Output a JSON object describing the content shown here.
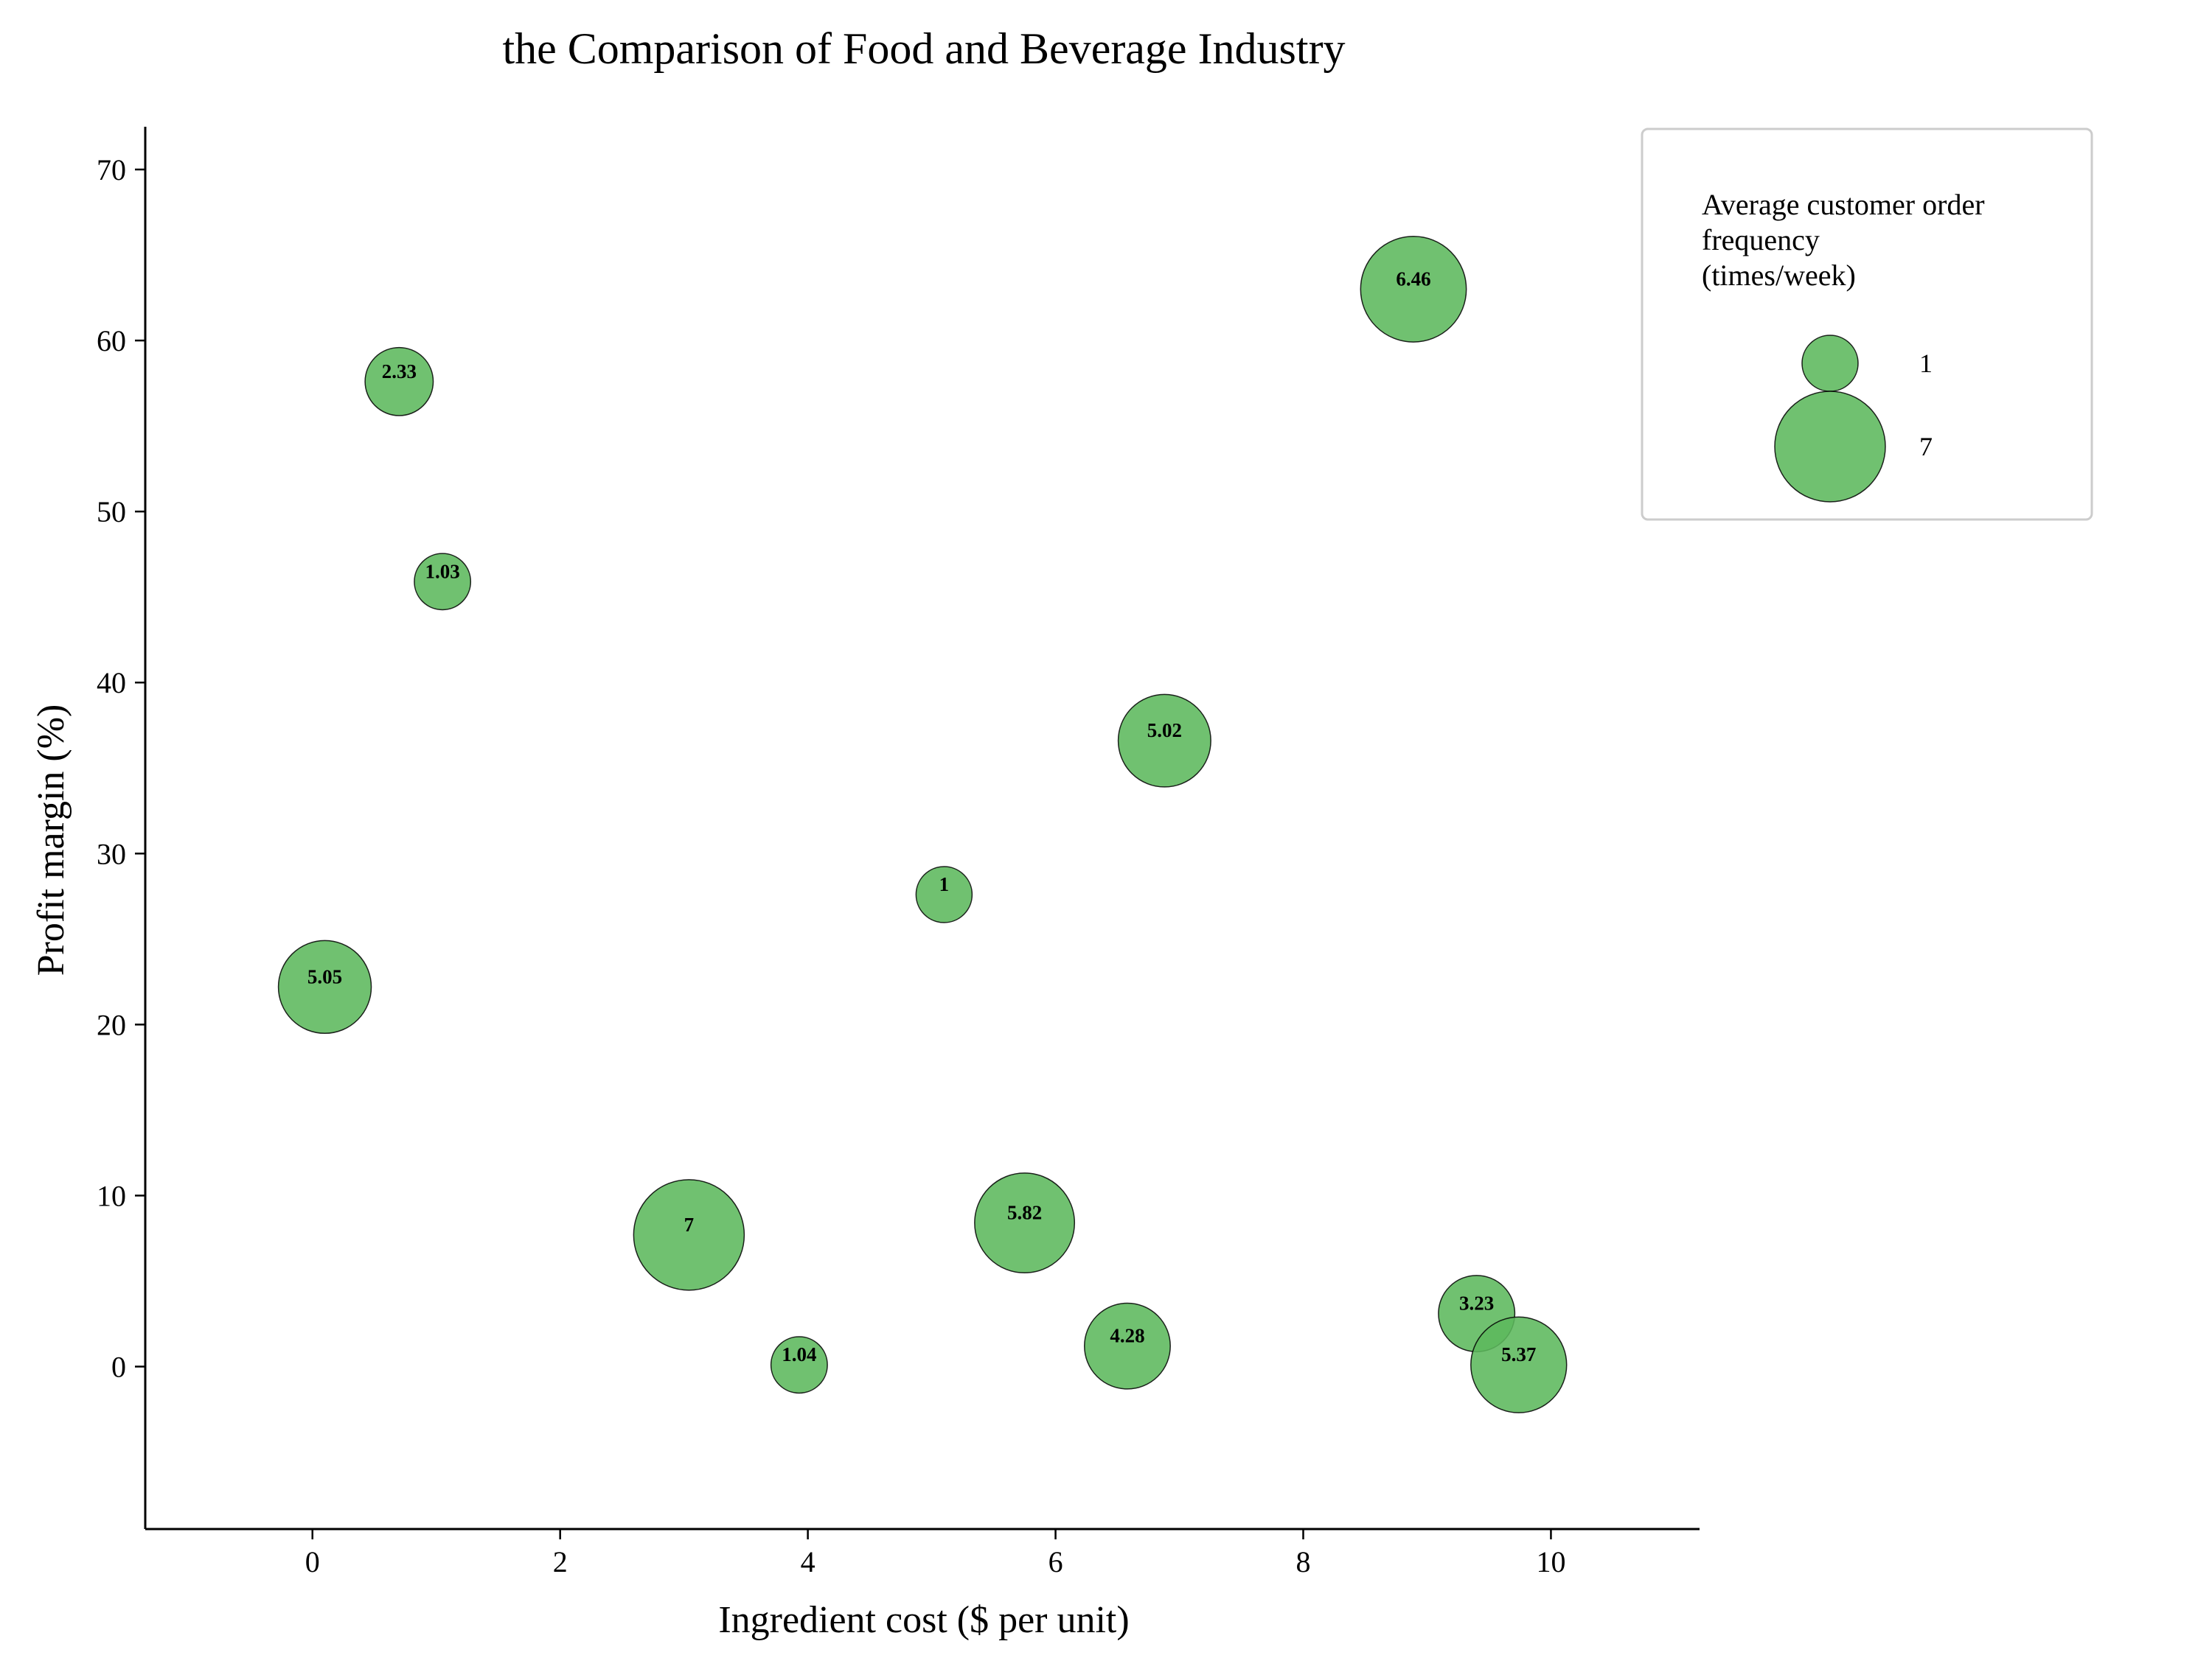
{
  "chart_data": {
    "type": "scatter",
    "subtype": "bubble",
    "title": "the Comparison of Food and Beverage Industry",
    "xlabel": "Ingredient cost ($ per unit)",
    "ylabel": "Profit margin (%)",
    "xlim": [
      -1.35,
      11.2
    ],
    "ylim": [
      -9.5,
      72.5
    ],
    "xticks": [
      0,
      2,
      4,
      6,
      8,
      10
    ],
    "yticks": [
      0,
      10,
      20,
      30,
      40,
      50,
      60,
      70
    ],
    "grid": false,
    "size_encoding": "Average customer order frequency (times/week)",
    "color": "#5cb85c",
    "points": [
      {
        "x": 0.7,
        "y": 57.6,
        "size": 2.33,
        "label": "2.33"
      },
      {
        "x": 1.05,
        "y": 45.9,
        "size": 1.03,
        "label": "1.03"
      },
      {
        "x": 0.1,
        "y": 22.2,
        "size": 5.05,
        "label": "5.05"
      },
      {
        "x": 3.04,
        "y": 7.7,
        "size": 7,
        "label": "7"
      },
      {
        "x": 3.93,
        "y": 0.1,
        "size": 1.04,
        "label": "1.04"
      },
      {
        "x": 5.1,
        "y": 27.6,
        "size": 1,
        "label": "1"
      },
      {
        "x": 5.75,
        "y": 8.4,
        "size": 5.82,
        "label": "5.82"
      },
      {
        "x": 6.58,
        "y": 1.2,
        "size": 4.28,
        "label": "4.28"
      },
      {
        "x": 6.88,
        "y": 36.6,
        "size": 5.02,
        "label": "5.02"
      },
      {
        "x": 8.89,
        "y": 63.0,
        "size": 6.46,
        "label": "6.46"
      },
      {
        "x": 9.4,
        "y": 3.1,
        "size": 3.23,
        "label": "3.23"
      },
      {
        "x": 9.74,
        "y": 0.1,
        "size": 5.37,
        "label": "5.37"
      }
    ],
    "legend": {
      "position": "top-right",
      "title_lines": [
        "Average customer order",
        "frequency",
        "(times/week)"
      ],
      "entries": [
        {
          "size": 1,
          "label": "1"
        },
        {
          "size": 7,
          "label": "7"
        }
      ]
    }
  }
}
